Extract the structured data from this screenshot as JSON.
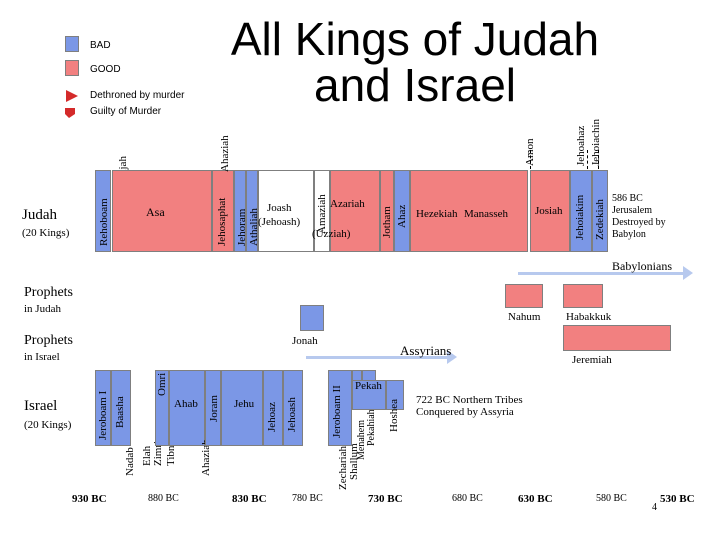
{
  "title": "All Kings of Judah and Israel",
  "legend": {
    "bad": "BAD",
    "good": "GOOD",
    "dethroned": "Dethroned by murder",
    "murder": "Guilty of Murder"
  },
  "colors": {
    "good": "#f28080",
    "bad": "#7b97e6",
    "arrow": "#b7c9ee"
  },
  "judah": {
    "label": "Judah",
    "count": "(20 Kings)",
    "kings": {
      "rehoboam": "Rehoboam",
      "abijah": "Abijah",
      "asa": "Asa",
      "jehosaphat": "Jehosaphat",
      "jehoram": "Jehoram",
      "ahaziah": "Ahaziah",
      "athaliah": "Athaliah",
      "joash": "Joash",
      "jehoash": "(Jehoash)",
      "amaziah": "Amaziah",
      "azariah": "Azariah",
      "uzziah": "(Uzziah)",
      "jotham": "Jotham",
      "ahaz": "Ahaz",
      "hezekiah": "Hezekiah",
      "manasseh": "Manasseh",
      "amon": "Amon",
      "josiah": "Josiah",
      "jehoahaz": "Jehoahaz",
      "jehoiakim": "Jehoiakim",
      "jehoiachin": "Jehoiachin",
      "zedekiah": "Zedekiah"
    },
    "end_note": "586 BC Jerusalem Destroyed by Babylon"
  },
  "babylonians": "Babylonians",
  "assyrians": "Assyrians",
  "prophets_judah": {
    "label": "Prophets",
    "sub": "in Judah",
    "nahum": "Nahum",
    "habakkuk": "Habakkuk",
    "jeremiah": "Jeremiah"
  },
  "prophets_israel": {
    "label": "Prophets",
    "sub": "in Israel",
    "jonah": "Jonah"
  },
  "israel": {
    "label": "Israel",
    "count": "(20 Kings)",
    "kings": {
      "jeroboam1": "Jeroboam I",
      "nadab": "Nadab",
      "baasha": "Baasha",
      "elah": "Elah",
      "zimri": "Zimri",
      "tibni": "Tibni",
      "omri": "Omri",
      "ahab": "Ahab",
      "ahaziah": "Ahaziah",
      "joram": "Joram",
      "jehu": "Jehu",
      "jehoaz": "Jehoaz",
      "jehoash": "Jehoash",
      "jeroboam2": "Jeroboam II",
      "zechariah": "Zechariah",
      "shallum": "Shallum",
      "menahem": "Menahem",
      "pekahiah": "Pekahiah",
      "pekah": "Pekah",
      "hoshea": "Hoshea"
    },
    "end_note": "722 BC Northern Tribes Conquered by Assyria"
  },
  "timeline": [
    "930 BC",
    "880 BC",
    "830 BC",
    "780 BC",
    "730 BC",
    "680 BC",
    "630 BC",
    "580 BC",
    "530 BC"
  ],
  "page_number": "4"
}
